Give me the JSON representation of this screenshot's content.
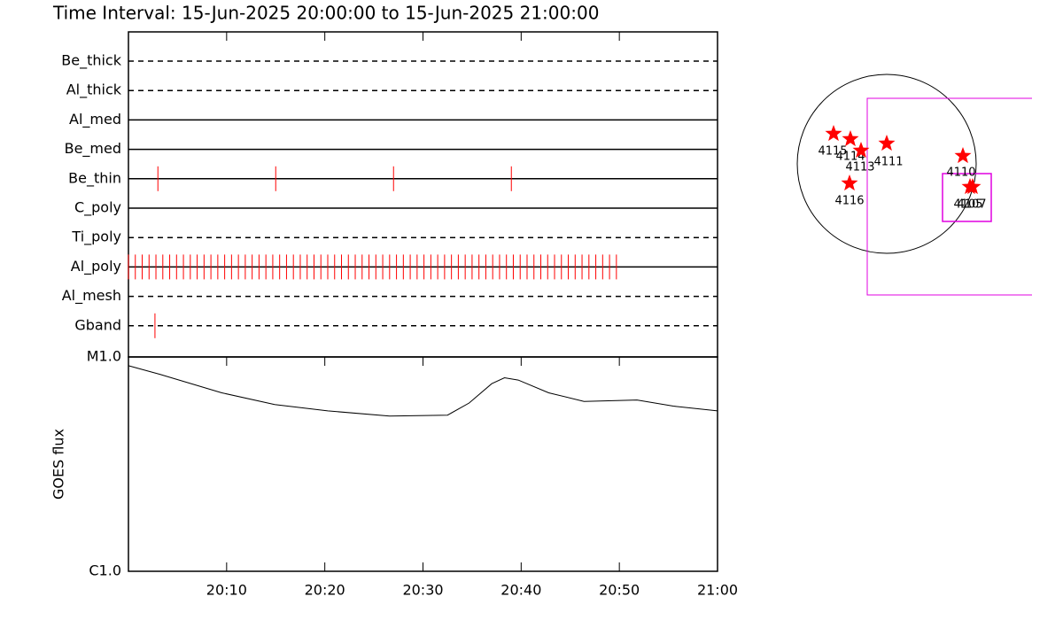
{
  "title": "Time Interval: 15-Jun-2025 20:00:00 to 15-Jun-2025 21:00:00",
  "time_axis": {
    "xlim": [
      0,
      60
    ],
    "xticks": [
      {
        "value": 10,
        "label": "20:10"
      },
      {
        "value": 20,
        "label": "20:20"
      },
      {
        "value": 30,
        "label": "20:30"
      },
      {
        "value": 40,
        "label": "20:40"
      },
      {
        "value": 50,
        "label": "20:50"
      },
      {
        "value": 60,
        "label": "21:00"
      }
    ]
  },
  "filters": [
    {
      "name": "Be_thick",
      "dashed": true,
      "exposures": []
    },
    {
      "name": "Al_thick",
      "dashed": true,
      "exposures": []
    },
    {
      "name": "Al_med",
      "dashed": false,
      "exposures": []
    },
    {
      "name": "Be_med",
      "dashed": false,
      "exposures": []
    },
    {
      "name": "Be_thin",
      "dashed": false,
      "exposures": [
        3,
        15,
        27,
        39
      ]
    },
    {
      "name": "C_poly",
      "dashed": false,
      "exposures": []
    },
    {
      "name": "Ti_poly",
      "dashed": true,
      "exposures": []
    },
    {
      "name": "Al_poly",
      "dashed": false,
      "exposures": [
        0,
        0.7,
        1.4,
        2.1,
        2.8,
        3.5,
        4.2,
        4.9,
        5.6,
        6.3,
        7,
        7.7,
        8.4,
        9.1,
        9.8,
        10.5,
        11.2,
        11.9,
        12.6,
        13.3,
        14,
        14.7,
        15.4,
        16.1,
        16.8,
        17.5,
        18.2,
        18.9,
        19.6,
        20.3,
        21,
        21.7,
        22.4,
        23.1,
        23.8,
        24.5,
        25.2,
        25.9,
        26.6,
        27.3,
        28,
        28.7,
        29.4,
        30.1,
        30.8,
        31.5,
        32.2,
        32.9,
        33.6,
        34.3,
        35,
        35.7,
        36.4,
        37.1,
        37.8,
        38.5,
        39.2,
        39.9,
        40.6,
        41.3,
        42,
        42.7,
        43.4,
        44.1,
        44.8,
        45.5,
        46.2,
        46.9,
        47.6,
        48.3,
        49,
        49.7
      ]
    },
    {
      "name": "Al_mesh",
      "dashed": true,
      "exposures": []
    },
    {
      "name": "Gband",
      "dashed": true,
      "exposures": [
        2.7
      ]
    }
  ],
  "exposure_color": "#ff0000",
  "goes": {
    "type": "line",
    "ylabel": "GOES flux",
    "log": true,
    "color": "#000000",
    "ylim": [
      1e-06,
      1e-05
    ],
    "yticks": [
      {
        "value": 1e-06,
        "label": "C1.0"
      },
      {
        "value": 1e-05,
        "label": "M1.0"
      }
    ],
    "x": [
      0,
      3.2,
      9.5,
      14.9,
      20.3,
      26.6,
      32.5,
      34.7,
      37.0,
      38.3,
      39.7,
      42.8,
      46.4,
      51.8,
      55.5,
      60
    ],
    "values": [
      9.1e-06,
      8.3e-06,
      6.8e-06,
      6e-06,
      5.6e-06,
      5.3e-06,
      5.35e-06,
      6.1e-06,
      7.5e-06,
      8e-06,
      7.8e-06,
      6.8e-06,
      6.2e-06,
      6.3e-06,
      5.9e-06,
      5.6e-06
    ]
  },
  "active_regions": [
    "4115",
    "4114",
    "4113",
    "4111",
    "4110",
    "4105",
    "4107",
    "4116"
  ]
}
